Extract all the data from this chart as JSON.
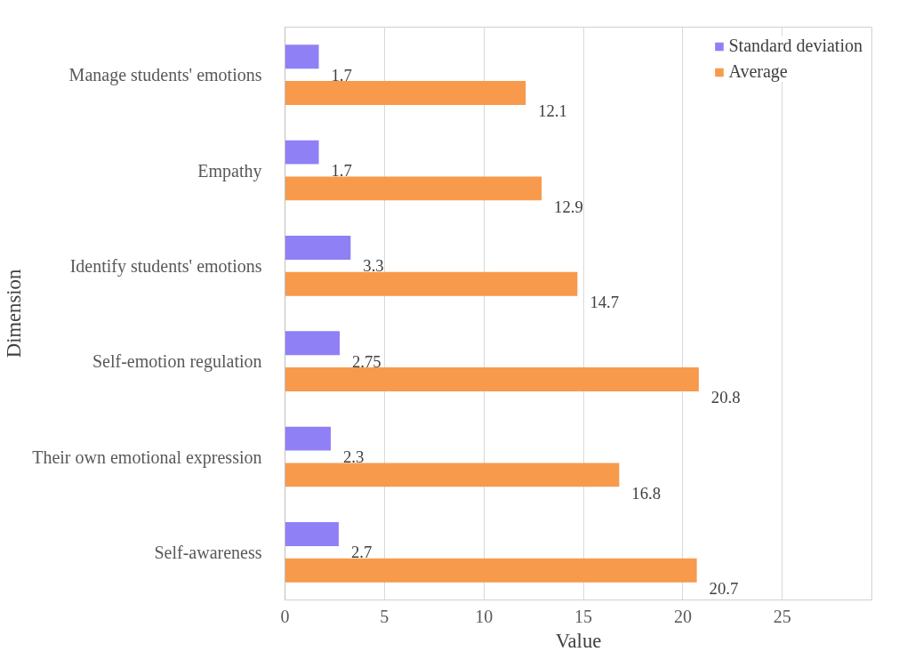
{
  "chart_data": {
    "type": "bar",
    "orientation": "horizontal",
    "xlabel": "Value",
    "ylabel": "Dimension",
    "categories": [
      "Manage students' emotions",
      "Empathy",
      "Identify students' emotions",
      "Self-emotion regulation",
      "Their own emotional expression",
      "Self-awareness"
    ],
    "series": [
      {
        "name": "Standard deviation",
        "color": "#8f80f5",
        "values": [
          1.7,
          1.7,
          3.3,
          2.75,
          2.3,
          2.7
        ]
      },
      {
        "name": "Average",
        "color": "#f79a4c",
        "values": [
          12.1,
          12.9,
          14.7,
          20.8,
          16.8,
          20.7
        ]
      }
    ],
    "xlim": [
      0,
      29.5
    ],
    "xticks": [
      0,
      5,
      10,
      15,
      20,
      25
    ],
    "grid": "x",
    "legend": "top right",
    "data_labels": true
  }
}
